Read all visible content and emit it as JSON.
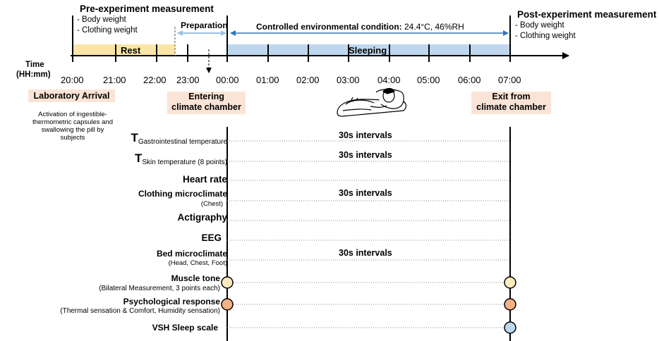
{
  "header": {
    "pre_title": "Pre-experiment measurement",
    "pre_items": [
      "- Body weight",
      "- Clothing weight"
    ],
    "post_title": "Post-experiment measurement",
    "post_items": [
      "- Body weight",
      "- Clothing weight"
    ],
    "preparation": "Preparation",
    "controlled_label": "Controlled environmental condition:",
    "controlled_value": " 24.4°C, 46%RH"
  },
  "timeline": {
    "axis_label_line1": "Time",
    "axis_label_line2": "(HH:mm)",
    "rest_label": "Rest",
    "sleeping_label": "Sleeping",
    "times": [
      "20:00",
      "21:00",
      "22:00",
      "23:00",
      "00:00",
      "01:00",
      "02:00",
      "03:00",
      "04:00",
      "05:00",
      "06:00",
      "07:00"
    ]
  },
  "events": {
    "arrival": "Laboratory Arrival",
    "activation_note": [
      "Activation of ingestible-",
      "thermometric capsules and",
      "swallowing the pill by subjects"
    ],
    "entering": [
      "Entering",
      "climate chamber"
    ],
    "exit": [
      "Exit from",
      "climate chamber"
    ]
  },
  "measurements": {
    "gastro_T": "T",
    "gastro_sub": "Gastrointestinal temperature",
    "skin_T": "T",
    "skin_sub": "Skin temperature",
    "skin_note": " (8 points)",
    "heart_rate": "Heart rate",
    "clothing_micro": "Clothing microclimate",
    "clothing_note": "(Chest)",
    "actigraphy": "Actigraphy",
    "eeg": "EEG",
    "bed_micro": "Bed microclimate",
    "bed_note": "(Head, Chest, Foot)",
    "muscle_tone": "Muscle tone",
    "muscle_note": "(Bilateral Measurement, 3 points each)",
    "psych": "Psychological response",
    "psych_note": "(Thermal sensation & Comfort, Humidity sensation)",
    "vsh": "VSH Sleep scale",
    "interval": "30s intervals"
  },
  "colors": {
    "rest": "#fbe5a6",
    "sleeping": "#bdd7ee",
    "event_box": "#fbe4d6",
    "muscle_circle": "#fdebc0",
    "psych_circle": "#f4b183",
    "vsh_circle": "#bdd7ee",
    "arrow_blue": "#2e75b6",
    "arrow_lightblue": "#9dc3e6"
  },
  "icons": [
    "sleeping-person-icon"
  ]
}
